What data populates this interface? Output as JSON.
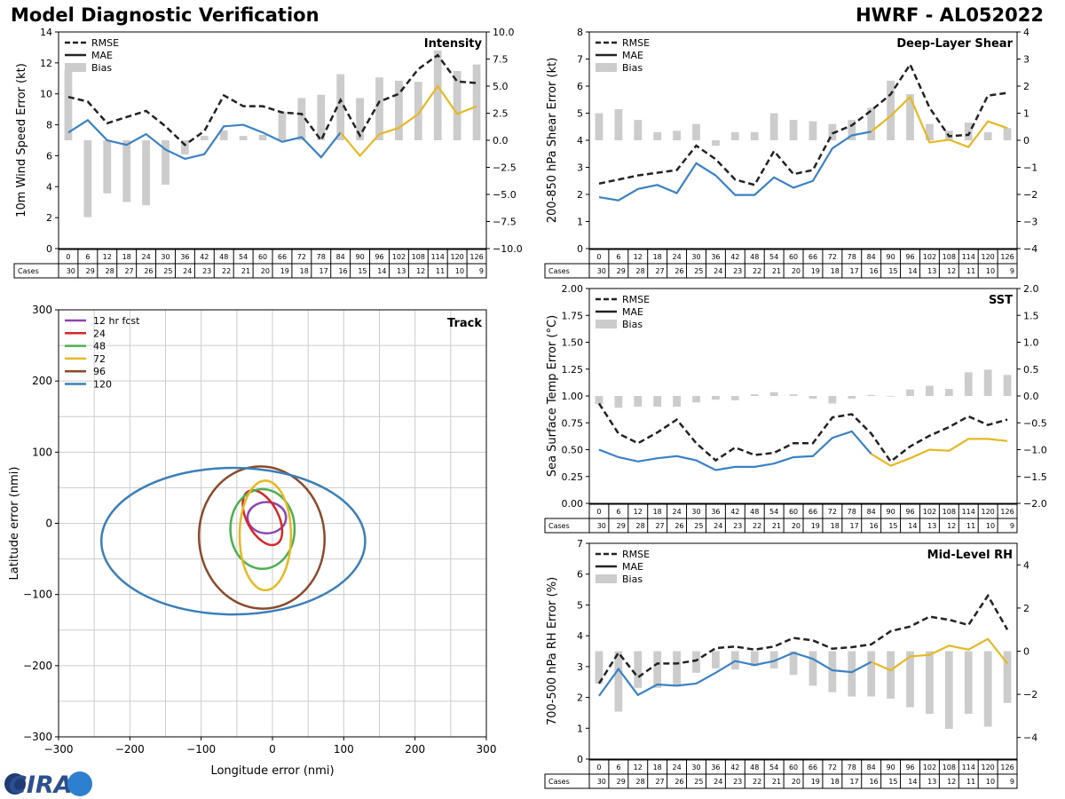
{
  "header": {
    "title": "Model Diagnostic Verification",
    "storm": "HWRF - AL052022"
  },
  "colors": {
    "rmse": "#222222",
    "mae_early": "#3b82c4",
    "mae_late": "#e5b824",
    "bias": "#cccccc",
    "track": [
      "#8e44ad",
      "#d62728",
      "#4caf50",
      "#e5b824",
      "#8b4a2b",
      "#3b7fb8"
    ]
  },
  "logo": {
    "text": "CIRA"
  },
  "chart_data": [
    {
      "id": "intensity",
      "type": "line+bar",
      "title": "Intensity",
      "ylabel": "10m Wind Speed Error (kt)",
      "ylim": [
        0,
        14
      ],
      "yticks": [
        "0",
        "2",
        "4",
        "6",
        "8",
        "10",
        "12",
        "14"
      ],
      "y2lim": [
        -10,
        10
      ],
      "y2ticks": [
        "−10.0",
        "−7.5",
        "−5.0",
        "−2.5",
        "0.0",
        "2.5",
        "5.0",
        "7.5",
        "10.0"
      ],
      "legend": [
        "RMSE",
        "MAE",
        "Bias"
      ],
      "hours": [
        "0",
        "6",
        "12",
        "18",
        "24",
        "30",
        "36",
        "42",
        "48",
        "54",
        "60",
        "66",
        "72",
        "78",
        "84",
        "90",
        "96",
        "102",
        "108",
        "114",
        "120",
        "126"
      ],
      "cases_label": "Cases",
      "cases": [
        "30",
        "29",
        "28",
        "27",
        "26",
        "25",
        "24",
        "23",
        "22",
        "21",
        "20",
        "19",
        "18",
        "17",
        "16",
        "15",
        "14",
        "13",
        "12",
        "11",
        "10",
        "9"
      ],
      "rmse": [
        9.8,
        9.5,
        8.1,
        8.5,
        8.9,
        7.9,
        6.7,
        7.6,
        9.9,
        9.2,
        9.2,
        8.8,
        8.7,
        7.0,
        9.6,
        7.3,
        9.5,
        10.0,
        11.6,
        12.5,
        10.8,
        10.7
      ],
      "mae": [
        7.5,
        8.3,
        7.0,
        6.7,
        7.4,
        6.4,
        5.8,
        6.1,
        7.9,
        8.0,
        7.5,
        6.9,
        7.2,
        5.9,
        7.5,
        6.0,
        7.4,
        7.8,
        8.7,
        10.5,
        8.7,
        9.2
      ],
      "bias": [
        6.5,
        -7.1,
        -4.9,
        -5.7,
        -6.0,
        -4.1,
        -1.3,
        0.4,
        0.9,
        0.4,
        0.5,
        2.6,
        3.9,
        4.2,
        6.1,
        3.9,
        5.8,
        5.5,
        5.4,
        8.3,
        6.4,
        7.0
      ]
    },
    {
      "id": "shear",
      "type": "line+bar",
      "title": "Deep-Layer Shear",
      "ylabel": "200-850 hPa Shear Error (kt)",
      "ylim": [
        0,
        8
      ],
      "yticks": [
        "0",
        "1",
        "2",
        "3",
        "4",
        "5",
        "6",
        "7",
        "8"
      ],
      "y2lim": [
        -4,
        4
      ],
      "y2ticks": [
        "−4",
        "−3",
        "−2",
        "−1",
        "0",
        "1",
        "2",
        "3",
        "4"
      ],
      "legend": [
        "RMSE",
        "MAE",
        "Bias"
      ],
      "hours": [
        "0",
        "6",
        "12",
        "18",
        "24",
        "30",
        "36",
        "42",
        "48",
        "54",
        "60",
        "66",
        "72",
        "78",
        "84",
        "90",
        "96",
        "102",
        "108",
        "114",
        "120",
        "126"
      ],
      "cases_label": "Cases",
      "cases": [
        "30",
        "29",
        "28",
        "27",
        "26",
        "25",
        "24",
        "23",
        "22",
        "21",
        "20",
        "19",
        "18",
        "17",
        "16",
        "15",
        "14",
        "13",
        "12",
        "11",
        "10",
        "9"
      ],
      "rmse": [
        2.4,
        2.55,
        2.7,
        2.8,
        2.9,
        3.8,
        3.3,
        2.55,
        2.35,
        3.6,
        2.75,
        2.9,
        4.25,
        4.55,
        5.1,
        5.7,
        6.8,
        5.2,
        4.15,
        4.2,
        5.65,
        5.75
      ],
      "mae": [
        1.9,
        1.78,
        2.2,
        2.35,
        2.05,
        3.15,
        2.7,
        1.98,
        1.98,
        2.63,
        2.25,
        2.5,
        3.7,
        4.18,
        4.32,
        4.9,
        5.6,
        3.92,
        4.02,
        3.75,
        4.7,
        4.45
      ],
      "bias": [
        1.0,
        1.15,
        0.75,
        0.3,
        0.35,
        0.6,
        -0.2,
        0.3,
        0.3,
        1.0,
        0.75,
        0.7,
        0.6,
        0.75,
        1.2,
        2.2,
        1.7,
        0.6,
        0.35,
        0.65,
        0.3,
        0.45
      ]
    },
    {
      "id": "sst",
      "type": "line+bar",
      "title": "SST",
      "ylabel": "Sea Surface Temp Error (°C)",
      "ylim": [
        0,
        2
      ],
      "yticks": [
        "0.00",
        "0.25",
        "0.50",
        "0.75",
        "1.00",
        "1.25",
        "1.50",
        "1.75",
        "2.00"
      ],
      "y2lim": [
        -2,
        2
      ],
      "y2ticks": [
        "−2.0",
        "−1.5",
        "−1.0",
        "−0.5",
        "0.0",
        "0.5",
        "1.0",
        "1.5",
        "2.0"
      ],
      "legend": [
        "RMSE",
        "MAE",
        "Bias"
      ],
      "hours": [
        "0",
        "6",
        "12",
        "18",
        "24",
        "30",
        "36",
        "42",
        "48",
        "54",
        "60",
        "66",
        "72",
        "78",
        "84",
        "90",
        "96",
        "102",
        "108",
        "114",
        "120",
        "126"
      ],
      "cases_label": "Cases",
      "cases": [
        "30",
        "29",
        "28",
        "27",
        "26",
        "25",
        "24",
        "23",
        "22",
        "21",
        "20",
        "19",
        "18",
        "17",
        "16",
        "15",
        "14",
        "13",
        "12",
        "11",
        "10",
        "9"
      ],
      "rmse": [
        0.93,
        0.65,
        0.56,
        0.66,
        0.78,
        0.56,
        0.4,
        0.52,
        0.45,
        0.47,
        0.56,
        0.56,
        0.8,
        0.83,
        0.65,
        0.39,
        0.53,
        0.63,
        0.71,
        0.81,
        0.73,
        0.78
      ],
      "mae": [
        0.5,
        0.43,
        0.39,
        0.42,
        0.44,
        0.4,
        0.31,
        0.34,
        0.34,
        0.37,
        0.43,
        0.44,
        0.61,
        0.67,
        0.46,
        0.35,
        0.42,
        0.5,
        0.49,
        0.6,
        0.6,
        0.58
      ],
      "bias": [
        -0.15,
        -0.22,
        -0.2,
        -0.2,
        -0.2,
        -0.12,
        -0.07,
        -0.08,
        0.03,
        0.07,
        0.03,
        -0.05,
        -0.14,
        -0.05,
        0.02,
        -0.01,
        0.12,
        0.19,
        0.13,
        0.44,
        0.49,
        0.39
      ]
    },
    {
      "id": "rh",
      "type": "line+bar",
      "title": "Mid-Level RH",
      "ylabel": "700-500 hPa RH Error (%)",
      "ylim": [
        0,
        7
      ],
      "yticks": [
        "0",
        "1",
        "2",
        "3",
        "4",
        "5",
        "6",
        "7"
      ],
      "y2lim": [
        -5,
        5
      ],
      "y2ticks": [
        "−4",
        "−2",
        "0",
        "2",
        "4"
      ],
      "legend": [
        "RMSE",
        "MAE",
        "Bias"
      ],
      "hours": [
        "0",
        "6",
        "12",
        "18",
        "24",
        "30",
        "36",
        "42",
        "48",
        "54",
        "60",
        "66",
        "72",
        "78",
        "84",
        "90",
        "96",
        "102",
        "108",
        "114",
        "120",
        "126"
      ],
      "cases_label": "Cases",
      "cases": [
        "30",
        "29",
        "28",
        "27",
        "26",
        "25",
        "24",
        "23",
        "22",
        "21",
        "20",
        "19",
        "18",
        "17",
        "16",
        "15",
        "14",
        "13",
        "12",
        "11",
        "10",
        "9"
      ],
      "rmse": [
        2.45,
        3.45,
        2.65,
        3.1,
        3.1,
        3.2,
        3.6,
        3.65,
        3.55,
        3.65,
        3.93,
        3.85,
        3.58,
        3.63,
        3.72,
        4.15,
        4.3,
        4.62,
        4.52,
        4.35,
        5.3,
        4.2
      ],
      "mae": [
        2.05,
        2.92,
        2.08,
        2.42,
        2.38,
        2.45,
        2.8,
        3.18,
        3.05,
        3.18,
        3.45,
        3.25,
        2.88,
        2.82,
        3.15,
        2.88,
        3.33,
        3.38,
        3.68,
        3.55,
        3.9,
        3.1
      ],
      "bias": [
        -1.5,
        -2.8,
        -1.7,
        -1.7,
        -1.6,
        -1.0,
        -0.8,
        -0.85,
        -0.7,
        -0.8,
        -1.1,
        -1.6,
        -1.9,
        -2.1,
        -2.1,
        -2.2,
        -2.6,
        -2.9,
        -3.6,
        -2.9,
        -3.5,
        -2.4
      ]
    },
    {
      "id": "track",
      "type": "ellipse",
      "title": "Track",
      "xlabel": "Longitude error (nmi)",
      "ylabel": "Latitude error (nmi)",
      "xlim": [
        -300,
        300
      ],
      "ylim": [
        -300,
        300
      ],
      "xticks": [
        "−300",
        "−200",
        "−100",
        "0",
        "100",
        "200",
        "300"
      ],
      "yticks": [
        "−300",
        "−200",
        "−100",
        "0",
        "100",
        "200",
        "300"
      ],
      "legend": [
        "12 hr fcst",
        "24",
        "48",
        "72",
        "96",
        "120"
      ],
      "ellipses": [
        {
          "cx": -8,
          "cy": 8,
          "rx": 27,
          "ry": 22,
          "angle": 0
        },
        {
          "cx": -14,
          "cy": 8,
          "rx": 22,
          "ry": 42,
          "angle": -28
        },
        {
          "cx": -14,
          "cy": -8,
          "rx": 45,
          "ry": 56,
          "angle": 0
        },
        {
          "cx": -10,
          "cy": -17,
          "rx": 36,
          "ry": 77,
          "angle": 0
        },
        {
          "cx": -15,
          "cy": -20,
          "rx": 88,
          "ry": 100,
          "angle": -5
        },
        {
          "cx": -55,
          "cy": -25,
          "rx": 185,
          "ry": 103,
          "angle": 0
        }
      ]
    }
  ]
}
